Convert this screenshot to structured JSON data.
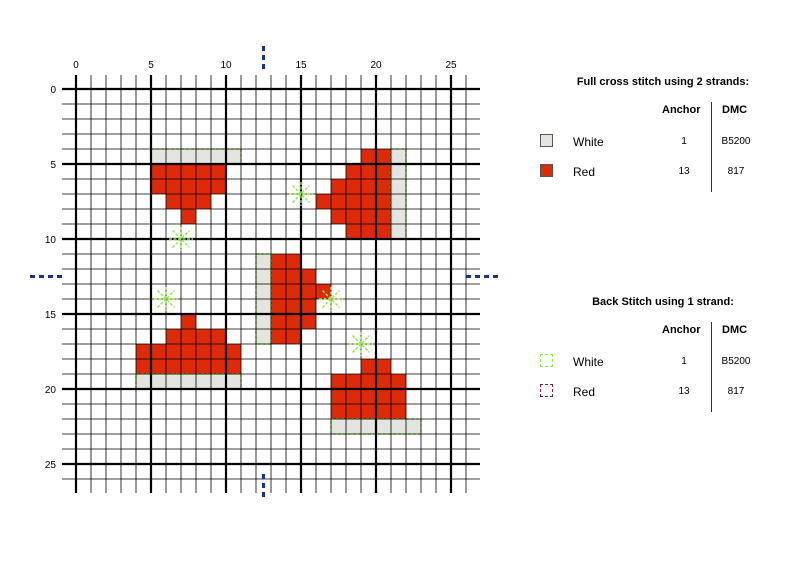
{
  "grid": {
    "size": 26,
    "axis_labels": [
      "0",
      "5",
      "10",
      "15",
      "20",
      "25"
    ]
  },
  "colors": {
    "red": "#dd2a09",
    "white_fill": "#e4e4e1",
    "white_backstitch": "#93e84a",
    "red_backstitch": "#7b1e4a",
    "center_marker": "#1a2f8f"
  },
  "cross_stitch": {
    "red": [
      [
        5,
        5
      ],
      [
        6,
        5
      ],
      [
        7,
        5
      ],
      [
        8,
        5
      ],
      [
        9,
        5
      ],
      [
        5,
        6
      ],
      [
        6,
        6
      ],
      [
        7,
        6
      ],
      [
        8,
        6
      ],
      [
        9,
        6
      ],
      [
        6,
        7
      ],
      [
        7,
        7
      ],
      [
        8,
        7
      ],
      [
        7,
        8
      ],
      [
        19,
        4
      ],
      [
        20,
        4
      ],
      [
        18,
        5
      ],
      [
        19,
        5
      ],
      [
        20,
        5
      ],
      [
        17,
        6
      ],
      [
        18,
        6
      ],
      [
        19,
        6
      ],
      [
        20,
        6
      ],
      [
        16,
        7
      ],
      [
        17,
        7
      ],
      [
        18,
        7
      ],
      [
        19,
        7
      ],
      [
        20,
        7
      ],
      [
        17,
        8
      ],
      [
        18,
        8
      ],
      [
        19,
        8
      ],
      [
        20,
        8
      ],
      [
        18,
        9
      ],
      [
        19,
        9
      ],
      [
        20,
        9
      ],
      [
        13,
        11
      ],
      [
        14,
        11
      ],
      [
        13,
        12
      ],
      [
        14,
        12
      ],
      [
        15,
        12
      ],
      [
        13,
        13
      ],
      [
        14,
        13
      ],
      [
        15,
        13
      ],
      [
        16,
        13
      ],
      [
        13,
        14
      ],
      [
        14,
        14
      ],
      [
        15,
        14
      ],
      [
        13,
        15
      ],
      [
        14,
        15
      ],
      [
        15,
        15
      ],
      [
        13,
        16
      ],
      [
        14,
        16
      ],
      [
        7,
        15
      ],
      [
        6,
        16
      ],
      [
        7,
        16
      ],
      [
        8,
        16
      ],
      [
        9,
        16
      ],
      [
        4,
        17
      ],
      [
        5,
        17
      ],
      [
        6,
        17
      ],
      [
        7,
        17
      ],
      [
        8,
        17
      ],
      [
        9,
        17
      ],
      [
        10,
        17
      ],
      [
        4,
        18
      ],
      [
        5,
        18
      ],
      [
        6,
        18
      ],
      [
        7,
        18
      ],
      [
        8,
        18
      ],
      [
        9,
        18
      ],
      [
        10,
        18
      ],
      [
        19,
        18
      ],
      [
        20,
        18
      ],
      [
        17,
        19
      ],
      [
        18,
        19
      ],
      [
        19,
        19
      ],
      [
        20,
        19
      ],
      [
        21,
        19
      ],
      [
        17,
        20
      ],
      [
        18,
        20
      ],
      [
        19,
        20
      ],
      [
        20,
        20
      ],
      [
        21,
        20
      ],
      [
        17,
        21
      ],
      [
        18,
        21
      ],
      [
        19,
        21
      ],
      [
        20,
        21
      ],
      [
        21,
        21
      ]
    ],
    "white": [
      [
        5,
        4
      ],
      [
        6,
        4
      ],
      [
        7,
        4
      ],
      [
        8,
        4
      ],
      [
        9,
        4
      ],
      [
        10,
        4
      ],
      [
        21,
        4
      ],
      [
        21,
        5
      ],
      [
        21,
        6
      ],
      [
        21,
        7
      ],
      [
        21,
        8
      ],
      [
        21,
        9
      ],
      [
        12,
        11
      ],
      [
        12,
        12
      ],
      [
        12,
        13
      ],
      [
        12,
        14
      ],
      [
        12,
        15
      ],
      [
        12,
        16
      ],
      [
        4,
        19
      ],
      [
        5,
        19
      ],
      [
        6,
        19
      ],
      [
        7,
        19
      ],
      [
        8,
        19
      ],
      [
        9,
        19
      ],
      [
        10,
        19
      ],
      [
        17,
        22
      ],
      [
        18,
        22
      ],
      [
        19,
        22
      ],
      [
        20,
        22
      ],
      [
        21,
        22
      ],
      [
        22,
        22
      ]
    ]
  },
  "backstitch_outlines": [
    [
      5,
      4,
      6,
      1
    ],
    [
      21,
      4,
      1,
      6
    ],
    [
      12,
      11,
      1,
      6
    ],
    [
      4,
      19,
      7,
      1
    ],
    [
      17,
      22,
      6,
      1
    ]
  ],
  "sparkles": [
    [
      15,
      7
    ],
    [
      7,
      10
    ],
    [
      6,
      14
    ],
    [
      17,
      14
    ],
    [
      19,
      17
    ]
  ],
  "legend": {
    "full": {
      "title": "Full cross stitch using 2 strands:",
      "anchor_header": "Anchor",
      "dmc_header": "DMC",
      "rows": [
        {
          "name": "White",
          "anchor": "1",
          "dmc": "B5200",
          "swatch": "#e4e4e1"
        },
        {
          "name": "Red",
          "anchor": "13",
          "dmc": "817",
          "swatch": "#dd2a09"
        }
      ]
    },
    "back": {
      "title": "Back Stitch using 1 strand:",
      "anchor_header": "Anchor",
      "dmc_header": "DMC",
      "rows": [
        {
          "name": "White",
          "anchor": "1",
          "dmc": "B5200",
          "swatch": "#93e84a"
        },
        {
          "name": "Red",
          "anchor": "13",
          "dmc": "817",
          "swatch": "#7b1e4a"
        }
      ]
    }
  }
}
